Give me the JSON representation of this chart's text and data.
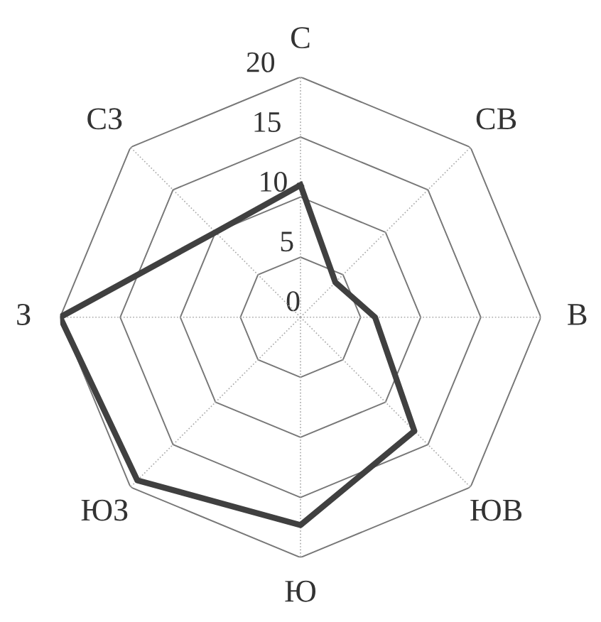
{
  "chart_data": {
    "type": "radar",
    "categories": [
      "С",
      "СВ",
      "В",
      "ЮВ",
      "Ю",
      "ЮЗ",
      "З",
      "СЗ"
    ],
    "series": [
      {
        "color": "#404040",
        "values": [
          11,
          4.1,
          6.2,
          13.4,
          17.3,
          19.2,
          20,
          10
        ]
      }
    ],
    "ylim": [
      0,
      20
    ],
    "yticks": [
      0,
      5,
      10,
      15,
      20
    ],
    "grid": true,
    "marker": "none",
    "line_style": "solid"
  }
}
